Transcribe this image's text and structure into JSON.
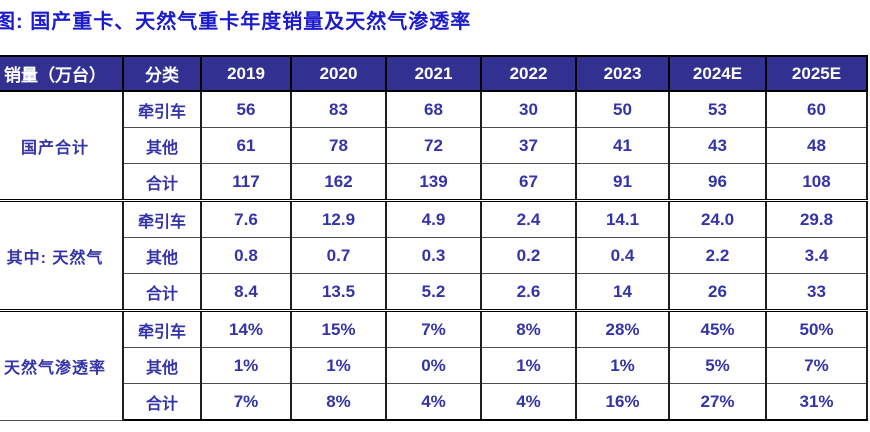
{
  "title": "图: 国产重卡、天然气重卡年度销量及天然气渗透率",
  "colors": {
    "title_text": "#1b1acd",
    "header_background": "#323192",
    "header_text": "#ffffff",
    "cell_text": "#3434a8",
    "border": "#000000"
  },
  "table": {
    "corner_header": "销量（万台）",
    "category_header": "分类",
    "year_headers": [
      "2019",
      "2020",
      "2021",
      "2022",
      "2023",
      "2024E",
      "2025E"
    ],
    "groups": [
      {
        "label": "国产合计",
        "rows": [
          {
            "category": "牵引车",
            "values": [
              "56",
              "83",
              "68",
              "30",
              "50",
              "53",
              "60"
            ]
          },
          {
            "category": "其他",
            "values": [
              "61",
              "78",
              "72",
              "37",
              "41",
              "43",
              "48"
            ]
          },
          {
            "category": "合计",
            "values": [
              "117",
              "162",
              "139",
              "67",
              "91",
              "96",
              "108"
            ]
          }
        ]
      },
      {
        "label": "其中: 天然气",
        "rows": [
          {
            "category": "牵引车",
            "values": [
              "7.6",
              "12.9",
              "4.9",
              "2.4",
              "14.1",
              "24.0",
              "29.8"
            ]
          },
          {
            "category": "其他",
            "values": [
              "0.8",
              "0.7",
              "0.3",
              "0.2",
              "0.4",
              "2.2",
              "3.4"
            ]
          },
          {
            "category": "合计",
            "values": [
              "8.4",
              "13.5",
              "5.2",
              "2.6",
              "14",
              "26",
              "33"
            ]
          }
        ]
      },
      {
        "label": "天然气渗透率",
        "rows": [
          {
            "category": "牵引车",
            "values": [
              "14%",
              "15%",
              "7%",
              "8%",
              "28%",
              "45%",
              "50%"
            ]
          },
          {
            "category": "其他",
            "values": [
              "1%",
              "1%",
              "0%",
              "1%",
              "1%",
              "5%",
              "7%"
            ]
          },
          {
            "category": "合计",
            "values": [
              "7%",
              "8%",
              "4%",
              "4%",
              "16%",
              "27%",
              "31%"
            ]
          }
        ]
      }
    ]
  }
}
